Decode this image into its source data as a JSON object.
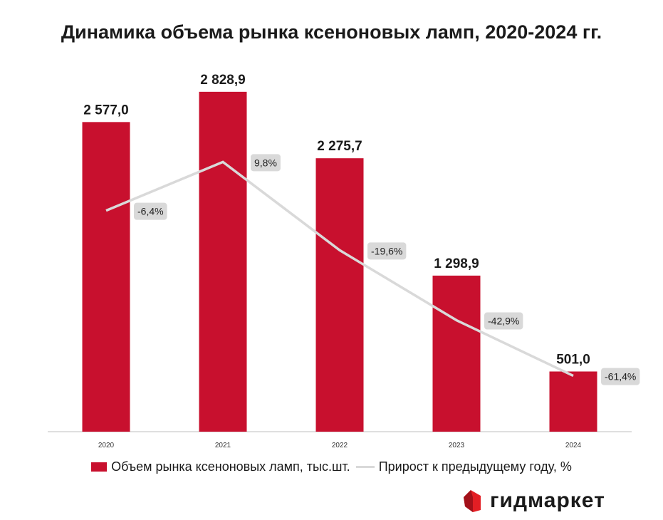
{
  "chart_data": {
    "type": "bar",
    "title": "Динамика объема рынка ксеноновых ламп, 2020-2024 гг.",
    "categories": [
      "2020",
      "2021",
      "2022",
      "2023",
      "2024"
    ],
    "series": [
      {
        "name": "Объем рынка ксеноновых ламп, тыс.шт.",
        "type": "bar",
        "values": [
          2577.0,
          2828.9,
          2275.7,
          1298.9,
          501.0
        ],
        "labels": [
          "2 577,0",
          "2 828,9",
          "2 275,7",
          "1 298,9",
          "501,0"
        ],
        "color": "#c8102e"
      },
      {
        "name": "Прирост к предыдущему году, %",
        "type": "line",
        "values": [
          -6.4,
          9.8,
          -19.6,
          -42.9,
          -61.4
        ],
        "labels": [
          "-6,4%",
          "9,8%",
          "-19,6%",
          "-42,9%",
          "-61,4%"
        ],
        "color": "#d9d9d9"
      }
    ],
    "ylim": [
      0,
      3000
    ],
    "y2lim": [
      -80,
      40
    ],
    "grid": false,
    "legend_position": "bottom"
  },
  "logo": {
    "text": "гидмаркет",
    "color": "#e31e24"
  }
}
